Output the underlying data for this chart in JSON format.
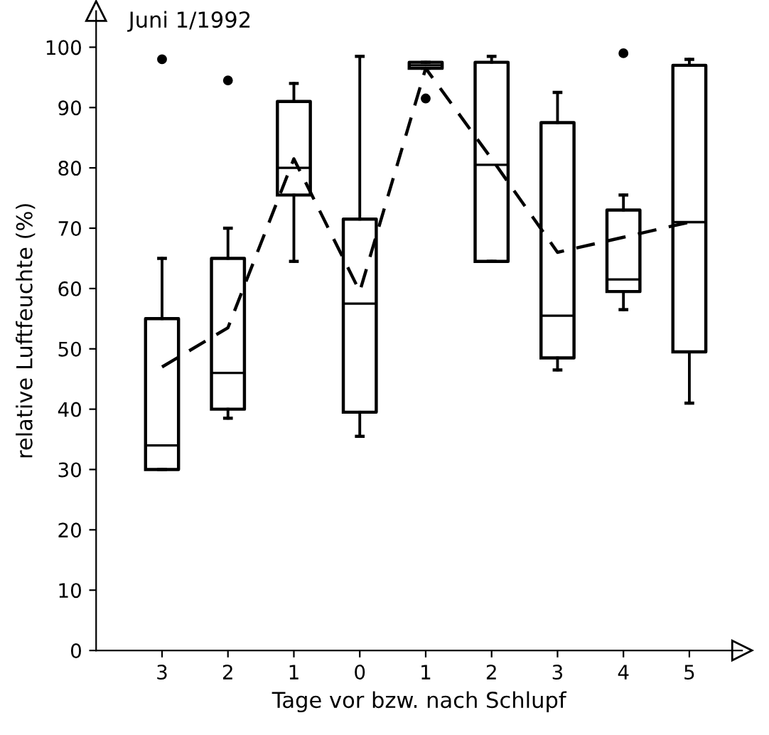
{
  "chart_data": {
    "type": "box",
    "title": "Juni 1/1992",
    "xlabel": "Tage vor bzw. nach Schlupf",
    "ylabel": "relative Luftfeuchte (%)",
    "categories": [
      "3",
      "2",
      "1",
      "0",
      "1",
      "2",
      "3",
      "4",
      "5"
    ],
    "boxes": [
      {
        "low": 30,
        "q1": 30,
        "median": 34,
        "q3": 55,
        "high": 65,
        "outliers": [
          98
        ]
      },
      {
        "low": 38.5,
        "q1": 40,
        "median": 46,
        "q3": 65,
        "high": 70,
        "outliers": [
          94.5
        ]
      },
      {
        "low": 64.5,
        "q1": 75.5,
        "median": 80,
        "q3": 91,
        "high": 94
      },
      {
        "low": 35.5,
        "q1": 39.5,
        "median": 57.5,
        "q3": 71.5,
        "high": 98.5
      },
      {
        "low": 96.5,
        "q1": 96.5,
        "median": 97,
        "q3": 97.5,
        "high": 97.5,
        "outliers": [
          91.5
        ]
      },
      {
        "low": 64.5,
        "q1": 64.5,
        "median": 80.5,
        "q3": 97.5,
        "high": 98.5
      },
      {
        "low": 46.5,
        "q1": 48.5,
        "median": 55.5,
        "q3": 87.5,
        "high": 92.5
      },
      {
        "low": 56.5,
        "q1": 59.5,
        "median": 61.5,
        "q3": 73,
        "high": 75.5,
        "outliers": [
          99
        ]
      },
      {
        "low": 41,
        "q1": 49.5,
        "median": 71,
        "q3": 97,
        "high": 98
      }
    ],
    "series": [
      {
        "type": "line",
        "color": "#000000",
        "line_style": "dashed",
        "marker": "none",
        "values": [
          47,
          53.5,
          81.5,
          59.5,
          96.5,
          81.5,
          66,
          68.5,
          71
        ]
      }
    ],
    "color": "#000000",
    "ylim": [
      0,
      106
    ],
    "yticks": [
      0,
      10,
      20,
      30,
      40,
      50,
      60,
      70,
      80,
      90,
      100
    ],
    "grid": false,
    "legend": false
  }
}
